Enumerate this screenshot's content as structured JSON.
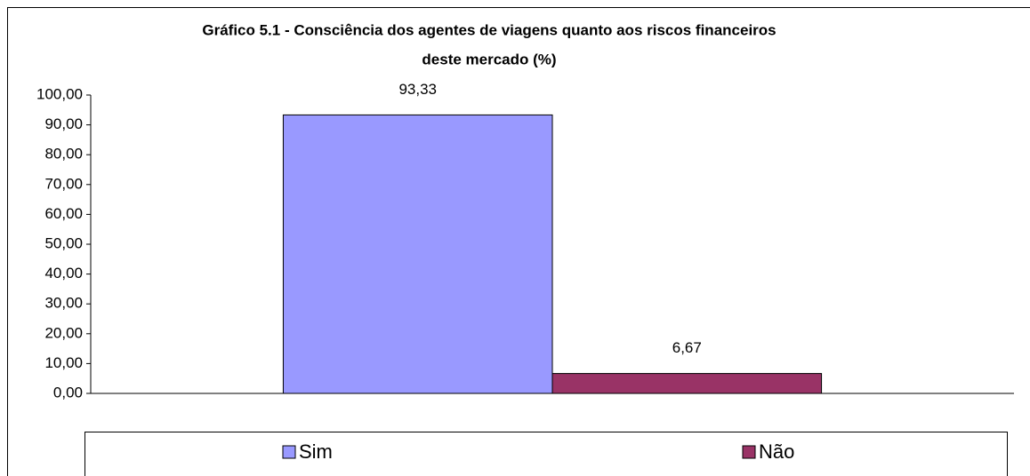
{
  "chart_data": {
    "type": "bar",
    "title": [
      "Gráfico 5.1 - Consciência dos agentes de viagens quanto aos riscos financeiros",
      "deste mercado (%)"
    ],
    "categories": [
      null
    ],
    "series": [
      {
        "name": "Sim",
        "color": "#9999ff",
        "values": [
          93.33
        ],
        "value_labels": [
          "93,33"
        ]
      },
      {
        "name": "Não",
        "color": "#993366",
        "values": [
          6.67
        ],
        "value_labels": [
          "6,67"
        ]
      }
    ],
    "ylim": [
      0,
      100
    ],
    "yticks": [
      {
        "value": 0,
        "label": "0,00"
      },
      {
        "value": 10,
        "label": "10,00"
      },
      {
        "value": 20,
        "label": "20,00"
      },
      {
        "value": 30,
        "label": "30,00"
      },
      {
        "value": 40,
        "label": "40,00"
      },
      {
        "value": 50,
        "label": "50,00"
      },
      {
        "value": 60,
        "label": "60,00"
      },
      {
        "value": 70,
        "label": "70,00"
      },
      {
        "value": 80,
        "label": "80,00"
      },
      {
        "value": 90,
        "label": "90,00"
      },
      {
        "value": 100,
        "label": "100,00"
      }
    ],
    "grid": false,
    "legend": "bottom"
  }
}
